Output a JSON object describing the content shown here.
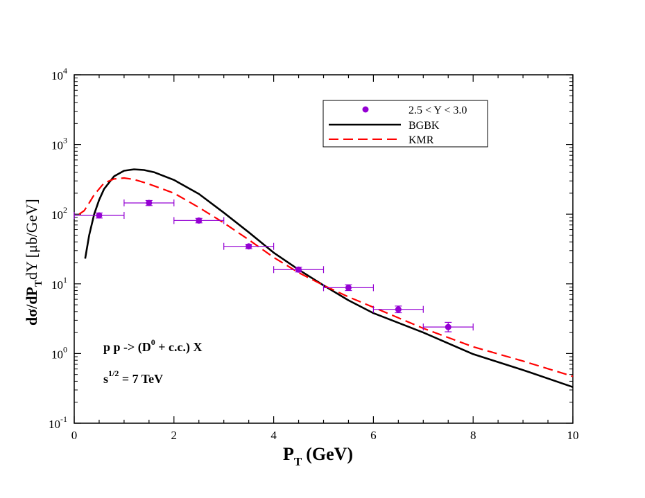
{
  "chart_data": {
    "type": "line",
    "xlabel": "P",
    "xlabel_sub": "T",
    "xlabel_unit": "(GeV)",
    "ylabel": "dσ/dP",
    "ylabel_sub": "T",
    "ylabel_rest": "dY [μb/GeV]",
    "xlim": [
      0,
      10
    ],
    "ylim_log10": [
      -1,
      4
    ],
    "yscale": "log",
    "x_ticks": [
      0,
      2,
      4,
      6,
      8,
      10
    ],
    "y_ticks": [
      {
        "base": "10",
        "exp": "-1",
        "log": -1
      },
      {
        "base": "10",
        "exp": "0",
        "log": 0
      },
      {
        "base": "10",
        "exp": "1",
        "log": 1
      },
      {
        "base": "10",
        "exp": "2",
        "log": 2
      },
      {
        "base": "10",
        "exp": "3",
        "log": 3
      },
      {
        "base": "10",
        "exp": "4",
        "log": 4
      }
    ],
    "legend_position": "top-right",
    "series": [
      {
        "name": "2.5 < Y < 3.0",
        "kind": "points",
        "color": "#9400d3",
        "points": [
          {
            "x": 0.5,
            "y": 96,
            "xerr": 0.5,
            "ylo": 88,
            "yhi": 104
          },
          {
            "x": 1.5,
            "y": 145,
            "xerr": 0.5,
            "ylo": 133,
            "yhi": 157
          },
          {
            "x": 2.5,
            "y": 81,
            "xerr": 0.5,
            "ylo": 75,
            "yhi": 87
          },
          {
            "x": 3.5,
            "y": 34.5,
            "xerr": 0.5,
            "ylo": 32,
            "yhi": 37
          },
          {
            "x": 4.5,
            "y": 16,
            "xerr": 0.5,
            "ylo": 14.8,
            "yhi": 17.3
          },
          {
            "x": 5.5,
            "y": 8.8,
            "xerr": 0.5,
            "ylo": 8.0,
            "yhi": 9.7
          },
          {
            "x": 6.5,
            "y": 4.3,
            "xerr": 0.5,
            "ylo": 3.85,
            "yhi": 4.8
          },
          {
            "x": 7.5,
            "y": 2.4,
            "xerr": 0.5,
            "ylo": 2.05,
            "yhi": 2.8
          }
        ]
      },
      {
        "name": "BGBK",
        "kind": "line",
        "color": "#000000",
        "dash": "solid",
        "x": [
          0.22,
          0.3,
          0.4,
          0.5,
          0.6,
          0.8,
          1.0,
          1.2,
          1.4,
          1.6,
          2.0,
          2.5,
          3.0,
          3.5,
          4.0,
          4.5,
          5.0,
          5.5,
          6.0,
          7.0,
          8.0,
          9.0,
          10.0
        ],
        "y": [
          23,
          50,
          100,
          160,
          230,
          350,
          420,
          440,
          430,
          400,
          310,
          195,
          105,
          55,
          28,
          16,
          9.5,
          5.8,
          3.8,
          2.0,
          0.98,
          0.58,
          0.33
        ]
      },
      {
        "name": "KMR",
        "kind": "line",
        "color": "#ff0000",
        "dash": "dashed",
        "x": [
          0.1,
          0.2,
          0.3,
          0.4,
          0.6,
          0.8,
          1.0,
          1.2,
          1.4,
          1.6,
          2.0,
          2.5,
          3.0,
          3.5,
          4.0,
          4.5,
          5.0,
          5.5,
          6.0,
          7.0,
          8.0,
          9.0,
          10.0
        ],
        "y": [
          100,
          112,
          145,
          190,
          280,
          320,
          330,
          315,
          285,
          255,
          200,
          125,
          75,
          43,
          24,
          14.5,
          9.5,
          6.5,
          4.6,
          2.3,
          1.25,
          0.78,
          0.47
        ]
      }
    ],
    "annotations": {
      "process_prefix": "p p -> (D",
      "process_sup": "0",
      "process_suffix": " + c.c.) X",
      "energy_prefix": "s",
      "energy_sup": "1/2",
      "energy_suffix": " = 7 TeV"
    }
  }
}
